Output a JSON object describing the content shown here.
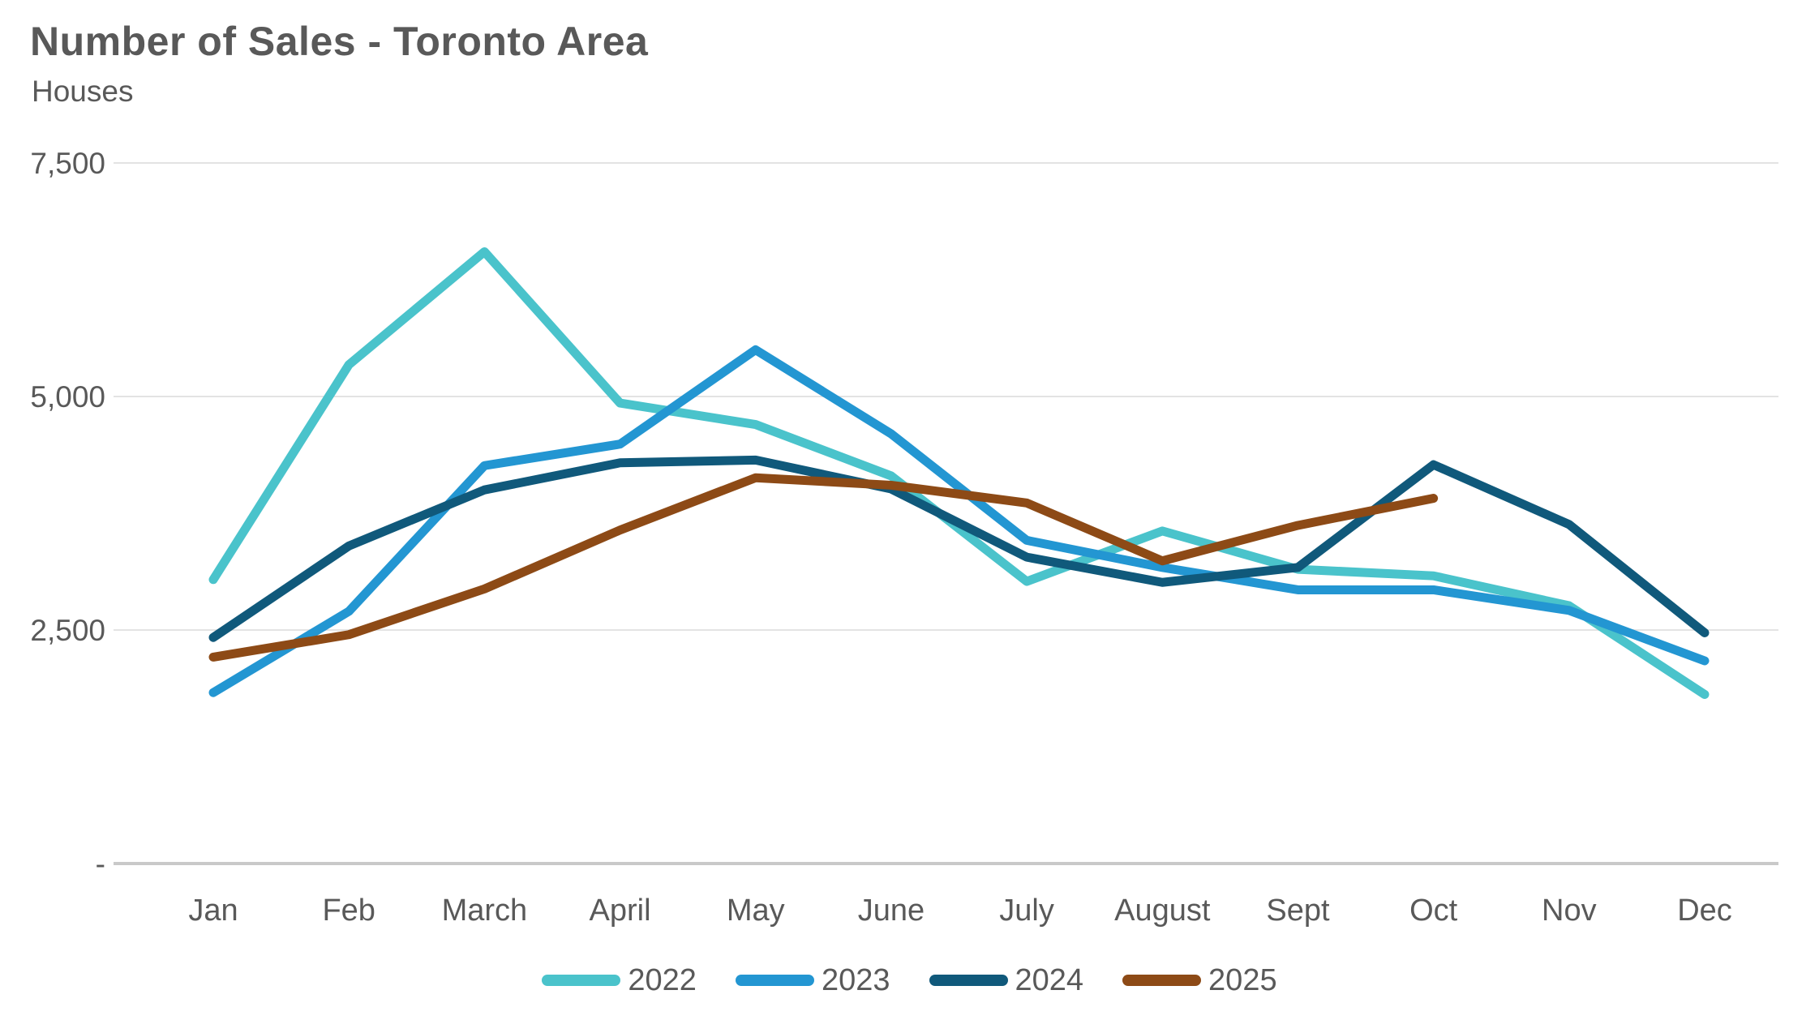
{
  "chart_data": {
    "type": "line",
    "title": "Number of Sales - Toronto Area",
    "subtitle": "Houses",
    "categories": [
      "Jan",
      "Feb",
      "March",
      "April",
      "May",
      "June",
      "July",
      "August",
      "Sept",
      "Oct",
      "Nov",
      "Dec"
    ],
    "y_ticks": [
      {
        "label": "7,500",
        "value": 7500
      },
      {
        "label": "5,000",
        "value": 5000
      },
      {
        "label": "2,500",
        "value": 2500
      },
      {
        "label": "-",
        "value": 0
      }
    ],
    "ylim": [
      0,
      7500
    ],
    "grid": "horizontal-only",
    "legend_position": "bottom-center",
    "axis_text_color": "#595959",
    "gridline_color": "#e3e3e3",
    "axis_line_color": "#c9c9c9",
    "series": [
      {
        "name": "2022",
        "color": "#4ac3cb",
        "values": [
          3040,
          5340,
          6550,
          4930,
          4700,
          4150,
          3020,
          3560,
          3150,
          3080,
          2760,
          1810
        ]
      },
      {
        "name": "2023",
        "color": "#2396d2",
        "values": [
          1830,
          2700,
          4260,
          4490,
          5500,
          4600,
          3460,
          3170,
          2930,
          2930,
          2710,
          2170
        ]
      },
      {
        "name": "2024",
        "color": "#10597b",
        "values": [
          2420,
          3400,
          4000,
          4290,
          4320,
          4010,
          3280,
          3010,
          3170,
          4270,
          3630,
          2470
        ]
      },
      {
        "name": "2025",
        "color": "#8d4a16",
        "values": [
          2210,
          2450,
          2940,
          3570,
          4130,
          4050,
          3860,
          3240,
          3620,
          3910
        ]
      }
    ]
  }
}
